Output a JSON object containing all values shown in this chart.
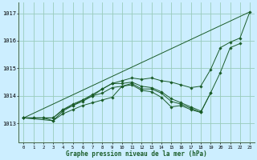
{
  "title": "Graphe pression niveau de la mer (hPa)",
  "background_color": "#cceeff",
  "grid_color": "#99ccbb",
  "line_color": "#1a5c28",
  "xlim": [
    -0.5,
    23.5
  ],
  "ylim": [
    1012.3,
    1017.4
  ],
  "yticks": [
    1013,
    1014,
    1015,
    1016,
    1017
  ],
  "xticks": [
    0,
    1,
    2,
    3,
    4,
    5,
    6,
    7,
    8,
    9,
    10,
    11,
    12,
    13,
    14,
    15,
    16,
    17,
    18,
    19,
    20,
    21,
    22,
    23
  ],
  "series": [
    {
      "x": [
        0,
        1,
        2,
        3,
        4,
        5,
        6,
        7,
        8,
        9,
        10,
        11,
        12,
        13,
        14,
        15,
        16,
        17,
        18,
        19,
        20,
        21,
        22,
        23
      ],
      "y": [
        1013.2,
        1013.2,
        1013.2,
        1013.2,
        1013.5,
        1013.65,
        1013.85,
        1014.05,
        1014.25,
        1014.45,
        1014.55,
        1014.65,
        1014.6,
        1014.65,
        1014.55,
        1014.5,
        1014.4,
        1014.3,
        1014.35,
        1014.95,
        1015.75,
        1015.95,
        1016.1,
        1017.05
      ],
      "has_markers": true
    },
    {
      "x": [
        0,
        1,
        2,
        3,
        4,
        5,
        6,
        7,
        8,
        9,
        10,
        11,
        12,
        13,
        14,
        15,
        16,
        17,
        18,
        19,
        20,
        21,
        22
      ],
      "y": [
        1013.2,
        1013.2,
        1013.2,
        1013.1,
        1013.35,
        1013.5,
        1013.65,
        1013.75,
        1013.85,
        1013.95,
        1014.35,
        1014.4,
        1014.2,
        1014.15,
        1013.95,
        1013.6,
        1013.65,
        1013.5,
        1013.4,
        1014.1,
        1014.85,
        1015.75,
        1015.9
      ],
      "has_markers": true
    },
    {
      "x": [
        0,
        3,
        4,
        5,
        6,
        7,
        8,
        9,
        10,
        11,
        12,
        13,
        14,
        15,
        16,
        17,
        18,
        19
      ],
      "y": [
        1013.2,
        1013.1,
        1013.45,
        1013.65,
        1013.8,
        1014.0,
        1014.1,
        1014.3,
        1014.35,
        1014.45,
        1014.25,
        1014.25,
        1014.1,
        1013.8,
        1013.7,
        1013.55,
        1013.4,
        1014.1
      ],
      "has_markers": true
    },
    {
      "x": [
        0,
        3,
        4,
        5,
        6,
        7,
        8,
        9,
        10,
        11,
        12,
        13,
        14,
        15,
        16,
        17,
        18
      ],
      "y": [
        1013.2,
        1013.2,
        1013.5,
        1013.7,
        1013.85,
        1014.0,
        1014.25,
        1014.45,
        1014.45,
        1014.5,
        1014.35,
        1014.3,
        1014.15,
        1013.9,
        1013.75,
        1013.6,
        1013.45
      ],
      "has_markers": true
    },
    {
      "x": [
        0,
        23
      ],
      "y": [
        1013.2,
        1017.05
      ],
      "has_markers": false
    }
  ]
}
